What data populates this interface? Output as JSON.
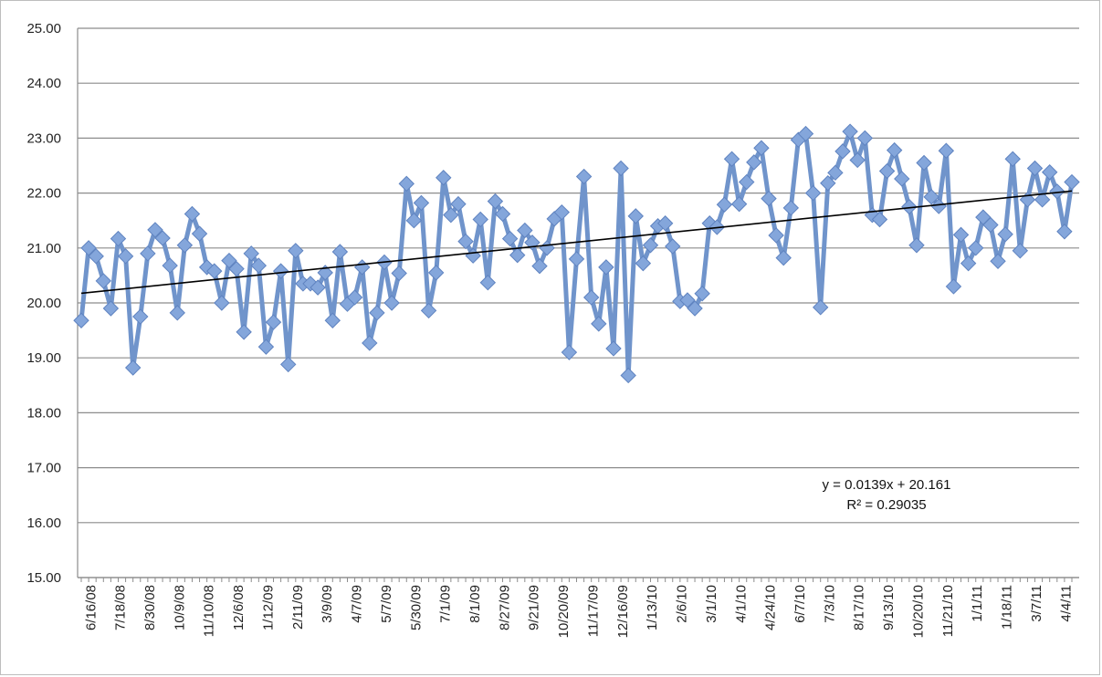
{
  "chart_data": {
    "type": "line",
    "title": "",
    "xlabel": "",
    "ylabel": "",
    "ylim": [
      15,
      25
    ],
    "y_ticks": [
      "15.00",
      "16.00",
      "17.00",
      "18.00",
      "19.00",
      "20.00",
      "21.00",
      "22.00",
      "23.00",
      "24.00",
      "25.00"
    ],
    "grid": "horizontal",
    "x_tick_labels": [
      "6/16/08",
      "7/18/08",
      "8/30/08",
      "10/9/08",
      "11/10/08",
      "12/6/08",
      "1/12/09",
      "2/11/09",
      "3/9/09",
      "4/7/09",
      "5/7/09",
      "5/30/09",
      "7/1/09",
      "8/1/09",
      "8/27/09",
      "9/21/09",
      "10/20/09",
      "11/17/09",
      "12/16/09",
      "1/13/10",
      "2/6/10",
      "3/1/10",
      "4/1/10",
      "4/24/10",
      "6/7/10",
      "7/3/10",
      "8/17/10",
      "9/13/10",
      "10/20/10",
      "11/21/10",
      "1/1/11",
      "1/18/11",
      "3/7/11",
      "4/4/11"
    ],
    "series": [
      {
        "color": "#7094cb",
        "marker": "diamond",
        "values": [
          19.68,
          21.0,
          20.85,
          20.4,
          19.9,
          21.17,
          20.85,
          18.82,
          19.75,
          20.9,
          21.33,
          21.18,
          20.68,
          19.82,
          21.05,
          21.62,
          21.26,
          20.65,
          20.58,
          20.0,
          20.77,
          20.62,
          19.47,
          20.9,
          20.68,
          19.2,
          19.65,
          20.58,
          18.88,
          20.95,
          20.35,
          20.35,
          20.28,
          20.55,
          19.68,
          20.93,
          19.98,
          20.1,
          20.65,
          19.27,
          19.82,
          20.74,
          20.0,
          20.54,
          22.17,
          21.5,
          21.82,
          19.86,
          20.55,
          22.28,
          21.6,
          21.8,
          21.12,
          20.86,
          21.52,
          20.37,
          21.85,
          21.62,
          21.17,
          20.87,
          21.32,
          21.1,
          20.67,
          21.0,
          21.53,
          21.65,
          19.1,
          20.8,
          22.3,
          20.1,
          19.62,
          20.65,
          19.17,
          22.45,
          18.68,
          21.58,
          20.72,
          21.05,
          21.4,
          21.45,
          21.03,
          20.03,
          20.05,
          19.9,
          20.17,
          21.45,
          21.38,
          21.79,
          22.62,
          21.8,
          22.2,
          22.56,
          22.82,
          21.9,
          21.23,
          20.82,
          21.73,
          22.97,
          23.08,
          22.0,
          19.92,
          22.18,
          22.37,
          22.76,
          23.12,
          22.6,
          23.0,
          21.6,
          21.52,
          22.4,
          22.78,
          22.26,
          21.75,
          21.05,
          22.55,
          21.93,
          21.76,
          22.77,
          20.3,
          21.24,
          20.72,
          21.0,
          21.56,
          21.42,
          20.76,
          21.25,
          22.62,
          20.95,
          21.88,
          22.45,
          21.88,
          22.38,
          22.03,
          21.3,
          22.2
        ]
      }
    ],
    "trendline": {
      "type": "linear",
      "slope": 0.0139,
      "intercept": 20.161,
      "equation": "y = 0.0139x + 20.161",
      "r_squared": "R² = 0.29035"
    }
  }
}
